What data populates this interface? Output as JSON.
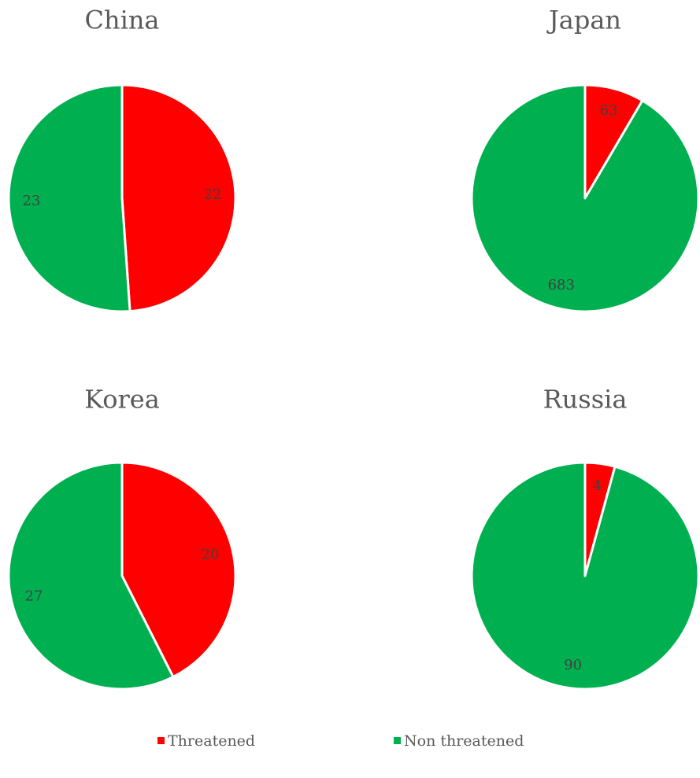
{
  "chart_data": [
    {
      "type": "pie",
      "title": "China",
      "categories": [
        "Threatened",
        "Non threatened"
      ],
      "values": [
        22,
        23
      ],
      "colors": [
        "#ff0000",
        "#00b050"
      ]
    },
    {
      "type": "pie",
      "title": "Japan",
      "categories": [
        "Threatened",
        "Non threatened"
      ],
      "values": [
        63,
        683
      ],
      "colors": [
        "#ff0000",
        "#00b050"
      ]
    },
    {
      "type": "pie",
      "title": "Korea",
      "categories": [
        "Threatened",
        "Non threatened"
      ],
      "values": [
        20,
        27
      ],
      "colors": [
        "#ff0000",
        "#00b050"
      ]
    },
    {
      "type": "pie",
      "title": "Russia",
      "categories": [
        "Threatened",
        "Non threatened"
      ],
      "values": [
        4,
        90
      ],
      "colors": [
        "#ff0000",
        "#00b050"
      ]
    }
  ]
}
